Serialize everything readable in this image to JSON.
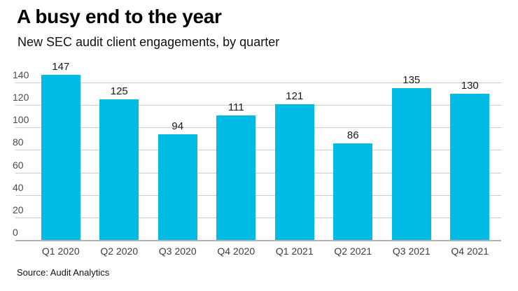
{
  "header": {
    "title": "A busy end to the year",
    "subtitle": "New SEC audit client engagements, by quarter"
  },
  "footer": {
    "source": "Source: Audit Analytics"
  },
  "colors": {
    "bar": "#00BCE4",
    "gridline": "#cccccc",
    "axis": "#b3b3b3",
    "title_text": "#000000",
    "label_text": "#1a1a1a"
  },
  "chart_data": {
    "type": "bar",
    "title": "A busy end to the year",
    "subtitle": "New SEC audit client engagements, by quarter",
    "categories": [
      "Q1 2020",
      "Q2 2020",
      "Q3 2020",
      "Q4 2020",
      "Q1 2021",
      "Q2 2021",
      "Q3 2021",
      "Q4 2021"
    ],
    "values": [
      147,
      125,
      94,
      111,
      121,
      86,
      135,
      130
    ],
    "xlabel": "",
    "ylabel": "",
    "ylim": [
      0,
      140
    ],
    "y_ticks": [
      0,
      20,
      40,
      60,
      80,
      100,
      120,
      140
    ],
    "grid": true,
    "legend": false,
    "bar_labels": true,
    "source": "Source: Audit Analytics"
  }
}
